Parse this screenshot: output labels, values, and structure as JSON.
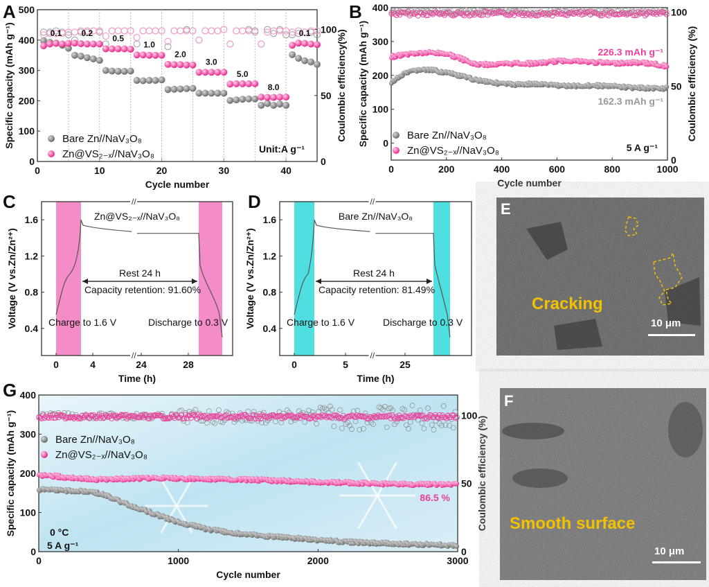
{
  "panels": {
    "A": "A",
    "B": "B",
    "C": "C",
    "D": "D",
    "E": "E",
    "F": "F",
    "G": "G"
  },
  "colors": {
    "bare": "#808080",
    "vs": "#ee3f9a",
    "vs_light": "#f59ccb",
    "pink_band": "#f48cc8",
    "cyan_band": "#4fdfe0",
    "annot_yellow": "#f2c200",
    "gray_text": "#999999"
  },
  "legend": {
    "bare": "Bare Zn//NaV₃O₈",
    "vs": "Zn@VS₂₋ₓ//NaV₃O₈"
  },
  "chart_data": [
    {
      "id": "A",
      "type": "scatter",
      "title": "",
      "xlabel": "Cycle number",
      "ylabel": "Specific capacity (mAh g⁻¹)",
      "y2label": "Coulombic efficiency(%)",
      "xlim": [
        0,
        45
      ],
      "ylim": [
        0,
        500
      ],
      "y2lim": [
        0,
        115
      ],
      "xticks": [
        0,
        10,
        20,
        30,
        40
      ],
      "yticks": [
        0,
        100,
        200,
        300,
        400,
        500
      ],
      "y2ticks": [
        0,
        50,
        100
      ],
      "rate_labels": [
        {
          "x": 3,
          "y": 400,
          "text": "0.1"
        },
        {
          "x": 8,
          "y": 400,
          "text": "0.2"
        },
        {
          "x": 13,
          "y": 382,
          "text": "0.5"
        },
        {
          "x": 18,
          "y": 362,
          "text": "1.0"
        },
        {
          "x": 23,
          "y": 330,
          "text": "2.0"
        },
        {
          "x": 28,
          "y": 305,
          "text": "3.0"
        },
        {
          "x": 33,
          "y": 265,
          "text": "5.0"
        },
        {
          "x": 38,
          "y": 222,
          "text": "8.0"
        },
        {
          "x": 43,
          "y": 400,
          "text": "0.1"
        }
      ],
      "unit_label": "Unit:A g⁻¹",
      "series": [
        {
          "name": "Bare Zn//NaV3O8 capacity",
          "x": [
            1,
            2,
            3,
            4,
            5,
            6,
            7,
            8,
            9,
            10,
            11,
            12,
            13,
            14,
            15,
            16,
            17,
            18,
            19,
            20,
            21,
            22,
            23,
            24,
            25,
            26,
            27,
            28,
            29,
            30,
            31,
            32,
            33,
            34,
            35,
            36,
            37,
            38,
            39,
            40,
            41,
            42,
            43,
            44,
            45
          ],
          "values": [
            398,
            393,
            390,
            383,
            373,
            350,
            347,
            342,
            338,
            333,
            300,
            298,
            297,
            297,
            298,
            267,
            266,
            267,
            267,
            269,
            237,
            238,
            239,
            240,
            241,
            225,
            225,
            225,
            225,
            225,
            201,
            203,
            205,
            206,
            206,
            185,
            191,
            185,
            189,
            185,
            352,
            340,
            332,
            328,
            320
          ]
        },
        {
          "name": "Zn@VS2-x//NaV3O8 capacity",
          "x": [
            1,
            2,
            3,
            4,
            5,
            6,
            7,
            8,
            9,
            10,
            11,
            12,
            13,
            14,
            15,
            16,
            17,
            18,
            19,
            20,
            21,
            22,
            23,
            24,
            25,
            26,
            27,
            28,
            29,
            30,
            31,
            32,
            33,
            34,
            35,
            36,
            37,
            38,
            39,
            40,
            41,
            42,
            43,
            44,
            45
          ],
          "values": [
            381,
            387,
            389,
            387,
            389,
            390,
            388,
            387,
            387,
            387,
            371,
            371,
            371,
            371,
            370,
            351,
            351,
            350,
            350,
            350,
            320,
            319,
            319,
            318,
            318,
            294,
            294,
            294,
            294,
            294,
            255,
            256,
            256,
            256,
            256,
            212,
            211,
            211,
            212,
            212,
            383,
            390,
            389,
            387,
            385
          ]
        },
        {
          "name": "Bare Zn//NaV3O8 CE",
          "x": [
            1,
            2,
            3,
            4,
            5,
            6,
            7,
            8,
            9,
            10,
            11,
            12,
            13,
            14,
            15,
            16,
            17,
            18,
            19,
            20,
            21,
            22,
            23,
            24,
            25,
            26,
            27,
            28,
            29,
            30,
            31,
            32,
            33,
            34,
            35,
            36,
            37,
            38,
            39,
            40,
            41,
            42,
            43,
            44,
            45
          ],
          "values": [
            98,
            98,
            99,
            98,
            96,
            92,
            98,
            98,
            99,
            98,
            89,
            99,
            99,
            99,
            99,
            89,
            99,
            99,
            99,
            99,
            87,
            99,
            99,
            100,
            99,
            92,
            99,
            99,
            99,
            100,
            89,
            99,
            99,
            100,
            99,
            89,
            100,
            97,
            100,
            96,
            96,
            97,
            98,
            98,
            96
          ]
        },
        {
          "name": "Zn@VS2-x//NaV3O8 CE",
          "x": [
            1,
            2,
            3,
            4,
            5,
            6,
            7,
            8,
            9,
            10,
            11,
            12,
            13,
            14,
            15,
            16,
            17,
            18,
            19,
            20,
            21,
            22,
            23,
            24,
            25,
            26,
            27,
            28,
            29,
            30,
            31,
            32,
            33,
            34,
            35,
            36,
            37,
            38,
            39,
            40,
            41,
            42,
            43,
            44,
            45
          ],
          "values": [
            96,
            97,
            97,
            97,
            98,
            98,
            99,
            99,
            99,
            99,
            95,
            99,
            99,
            99,
            99,
            94,
            99,
            99,
            99,
            99,
            91,
            99,
            99,
            99,
            99,
            92,
            99,
            99,
            99,
            100,
            89,
            99,
            99,
            99,
            98,
            89,
            98,
            99,
            99,
            99,
            98,
            99,
            98,
            99,
            99
          ]
        }
      ]
    },
    {
      "id": "B",
      "type": "scatter",
      "xlabel": "Cycle number",
      "ylabel": "Specific capacity (mAh g⁻¹)",
      "y2label": "Coulombic efficiency (%)",
      "xlim": [
        0,
        1000
      ],
      "ylim": [
        -50,
        400
      ],
      "y2lim": [
        0,
        103.1
      ],
      "xticks": [
        0,
        200,
        400,
        600,
        800,
        1000
      ],
      "yticks": [
        0,
        100,
        200,
        300,
        400
      ],
      "y2ticks": [
        0,
        50,
        100
      ],
      "annotations": [
        {
          "text": "226.3 mAh g⁻¹",
          "color": "vs"
        },
        {
          "text": "162.3 mAh g⁻¹",
          "color": "gray_text"
        },
        {
          "text": "5 A g⁻¹",
          "color": "black"
        }
      ],
      "series": [
        {
          "name": "Bare Zn//NaV3O8 capacity",
          "x": [
            0,
            50,
            100,
            150,
            200,
            250,
            300,
            350,
            400,
            450,
            500,
            550,
            600,
            650,
            700,
            750,
            800,
            850,
            900,
            950,
            1000
          ],
          "values": [
            180,
            205,
            217,
            215,
            208,
            198,
            188,
            182,
            175,
            173,
            175,
            173,
            171,
            168,
            170,
            170,
            168,
            165,
            163,
            162,
            162.3
          ]
        },
        {
          "name": "Zn@VS2-x//NaV3O8 capacity",
          "x": [
            0,
            50,
            100,
            150,
            200,
            250,
            300,
            350,
            400,
            450,
            500,
            550,
            600,
            650,
            700,
            750,
            800,
            850,
            900,
            950,
            1000
          ],
          "values": [
            255,
            262,
            266,
            267,
            264,
            250,
            233,
            232,
            233,
            236,
            235,
            237,
            242,
            244,
            240,
            238,
            236,
            237,
            238,
            234,
            226.3
          ]
        },
        {
          "name": "Bare Zn//NaV3O8 CE",
          "x": [
            0,
            1000
          ],
          "values": [
            100,
            100
          ]
        },
        {
          "name": "Zn@VS2-x//NaV3O8 CE",
          "x": [
            0,
            1000
          ],
          "values": [
            99,
            99
          ]
        }
      ]
    },
    {
      "id": "C",
      "type": "line",
      "title": "Zn@VS₂₋ₓ//NaV₃O₈",
      "xlabel": "Time (h)",
      "ylabel": "Voltage (V vs.Zn/Zn²⁺)",
      "xticks": [
        "0",
        "4",
        "24",
        "28"
      ],
      "yticks": [
        0.4,
        0.8,
        1.2,
        1.6
      ],
      "ylim": [
        0.1,
        1.8
      ],
      "rest_label": "Rest 24 h",
      "retention_label": "Capacity retention: 91.60%",
      "charge_label": "Charge to 1.6 V",
      "discharge_label": "Discharge to 0.3 V",
      "retention": 91.6
    },
    {
      "id": "D",
      "type": "line",
      "title": "Bare Zn//NaV₃O₈",
      "xlabel": "Time (h)",
      "ylabel": "Voltage (V vs.Zn/Zn²⁺)",
      "xticks": [
        "0",
        "5",
        "25"
      ],
      "yticks": [
        0.4,
        0.8,
        1.2,
        1.6
      ],
      "ylim": [
        0.1,
        1.8
      ],
      "rest_label": "Rest 24 h",
      "retention_label": "Capacity retention: 81.49%",
      "charge_label": "Charge to 1.6 V",
      "discharge_label": "Discharge to 0.3 V",
      "retention": 81.49
    },
    {
      "id": "G",
      "type": "scatter",
      "xlabel": "Cycle number",
      "ylabel": "Specific capacity (mAh g⁻¹)",
      "y2label": "Coulombic efficiency (%)",
      "xlim": [
        0,
        3000
      ],
      "ylim": [
        0,
        400
      ],
      "y2lim": [
        0,
        115
      ],
      "xticks": [
        0,
        1000,
        2000,
        3000
      ],
      "yticks": [
        0,
        100,
        200,
        300,
        400
      ],
      "y2ticks": [
        0,
        50,
        100
      ],
      "annotations": [
        {
          "text": "86.5 %",
          "color": "vs"
        },
        {
          "text": "0 °C",
          "color": "black"
        },
        {
          "text": "5 A g⁻¹",
          "color": "black"
        }
      ],
      "series": [
        {
          "name": "Bare Zn//NaV3O8 capacity",
          "x": [
            0,
            200,
            400,
            500,
            600,
            800,
            1000,
            1200,
            1400,
            1600,
            1800,
            2000,
            2200,
            2400,
            2600,
            2800,
            3000
          ],
          "values": [
            158,
            156,
            152,
            140,
            125,
            100,
            75,
            58,
            47,
            40,
            35,
            30,
            25,
            22,
            20,
            18,
            16
          ]
        },
        {
          "name": "Zn@VS2-x//NaV3O8 capacity",
          "x": [
            0,
            200,
            400,
            600,
            800,
            1000,
            1200,
            1400,
            1600,
            1800,
            2000,
            2200,
            2400,
            2600,
            2800,
            3000
          ],
          "values": [
            196,
            190,
            184,
            186,
            188,
            187,
            185,
            184,
            183,
            180,
            178,
            176,
            174,
            172,
            172,
            171
          ]
        },
        {
          "name": "Bare Zn//NaV3O8 CE",
          "x": [
            0,
            3000
          ],
          "values": [
            100,
            98
          ]
        },
        {
          "name": "Zn@VS2-x//NaV3O8 CE",
          "x": [
            0,
            3000
          ],
          "values": [
            99,
            99
          ]
        }
      ]
    }
  ],
  "sem": {
    "E": {
      "label": "Cracking",
      "scale": "10 μm"
    },
    "F": {
      "label": "Smooth surface",
      "scale": "10 μm"
    }
  }
}
